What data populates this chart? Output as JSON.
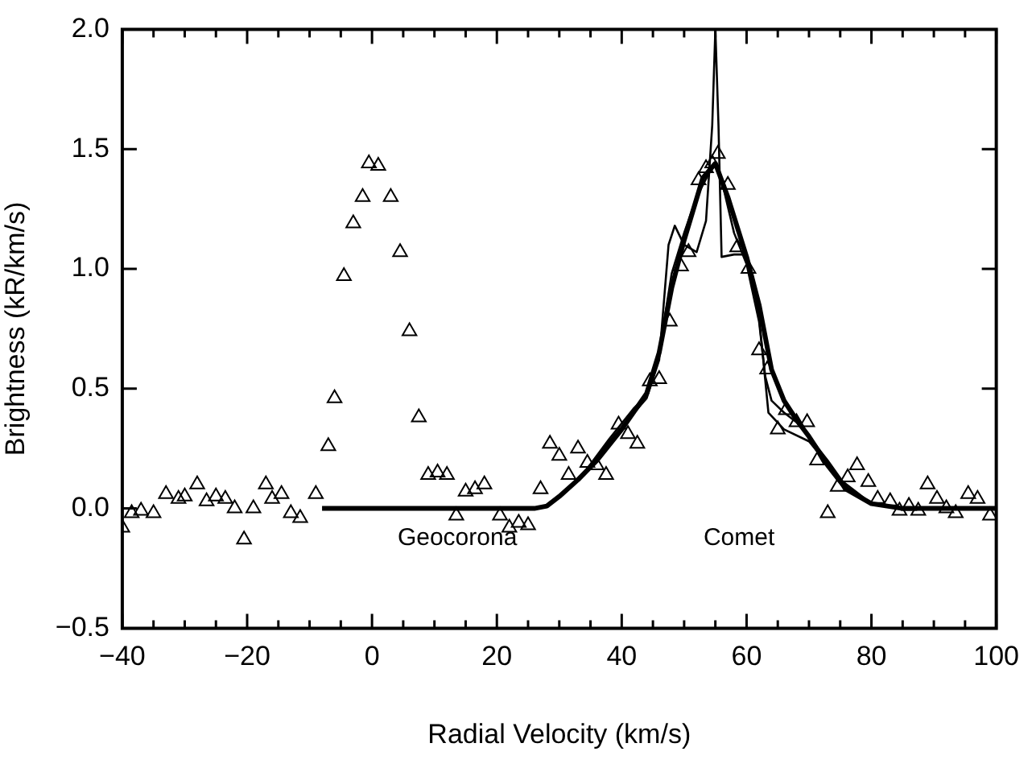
{
  "chart_data": {
    "type": "scatter",
    "xlabel": "Radial Velocity (km/s)",
    "ylabel": "Brightness (kR/km/s)",
    "xlim": [
      -40,
      100
    ],
    "ylim": [
      -0.5,
      2.0
    ],
    "xticks": [
      {
        "value": -40,
        "label": "−40"
      },
      {
        "value": -35,
        "label": null
      },
      {
        "value": -30,
        "label": null
      },
      {
        "value": -25,
        "label": null
      },
      {
        "value": -20,
        "label": "−20"
      },
      {
        "value": -15,
        "label": null
      },
      {
        "value": -10,
        "label": null
      },
      {
        "value": -5,
        "label": null
      },
      {
        "value": 0,
        "label": "0"
      },
      {
        "value": 5,
        "label": null
      },
      {
        "value": 10,
        "label": null
      },
      {
        "value": 15,
        "label": null
      },
      20,
      {
        "value": 25,
        "label": null
      },
      {
        "value": 30,
        "label": null
      },
      {
        "value": 35,
        "label": null
      },
      40,
      {
        "value": 45,
        "label": null
      },
      {
        "value": 50,
        "label": null
      },
      {
        "value": 55,
        "label": null
      },
      60,
      {
        "value": 65,
        "label": null
      },
      {
        "value": 70,
        "label": null
      },
      {
        "value": 75,
        "label": null
      },
      80,
      {
        "value": 85,
        "label": null
      },
      {
        "value": 90,
        "label": null
      },
      {
        "value": 95,
        "label": null
      },
      100
    ],
    "yticks": [
      {
        "value": -0.5,
        "label": "−0.5"
      },
      {
        "value": 0,
        "label": "0.0"
      },
      0.5,
      {
        "value": 1,
        "label": "1.0"
      },
      1.5,
      {
        "value": 2,
        "label": "2.0"
      }
    ],
    "grid": false,
    "legend": false,
    "series": [
      {
        "marker": "triangle",
        "color": "#000000",
        "x": [
          -40,
          -38.5,
          -37,
          -35,
          -33,
          -31,
          -30,
          -28,
          -26.5,
          -25,
          -23.5,
          -22,
          -20.5,
          -19,
          -17,
          -16,
          -14.5,
          -13,
          -11.5,
          -9,
          -7,
          -6,
          -4.5,
          -3,
          -1.5,
          -0.5,
          1,
          3,
          4.5,
          6,
          7.5,
          9,
          10.5,
          12,
          13.5,
          15,
          16.5,
          18,
          20.5,
          22,
          23.5,
          25,
          27,
          28.5,
          30,
          31.5,
          33,
          34.5,
          36,
          37.5,
          39.5,
          41,
          42.5,
          44.5,
          46,
          47.7,
          49.5,
          50.7,
          52.3,
          53.5,
          54.5,
          55.4,
          57,
          58.5,
          60.3,
          62,
          63.3,
          65,
          66.3,
          68,
          69.7,
          71.3,
          73,
          74.6,
          76.2,
          77.7,
          79.5,
          81,
          83,
          84.5,
          86,
          87.5,
          89,
          90.5,
          92,
          93.5,
          95.5,
          97,
          99
        ],
        "values": [
          -0.08,
          -0.02,
          -0.01,
          -0.02,
          0.06,
          0.04,
          0.05,
          0.1,
          0.03,
          0.05,
          0.04,
          0,
          -0.13,
          0,
          0.1,
          0.04,
          0.06,
          -0.02,
          -0.04,
          0.06,
          0.26,
          0.46,
          0.97,
          1.19,
          1.3,
          1.44,
          1.43,
          1.3,
          1.07,
          0.74,
          0.38,
          0.14,
          0.15,
          0.14,
          -0.03,
          0.07,
          0.08,
          0.1,
          -0.03,
          -0.08,
          -0.06,
          -0.07,
          0.08,
          0.27,
          0.22,
          0.14,
          0.25,
          0.19,
          0.18,
          0.14,
          0.35,
          0.31,
          0.27,
          0.53,
          0.54,
          0.78,
          1.01,
          1.07,
          1.37,
          1.42,
          1.44,
          1.48,
          1.35,
          1.09,
          1,
          0.66,
          0.58,
          0.33,
          0.41,
          0.36,
          0.36,
          0.2,
          -0.02,
          0.09,
          0.13,
          0.18,
          0.11,
          0.04,
          0.03,
          -0.01,
          0.01,
          -0.01,
          0.1,
          0.04,
          0,
          -0.02,
          0.06,
          0.04,
          -0.03
        ]
      },
      {
        "type": "line",
        "marker": "none",
        "line_style": "solid",
        "color": "#000000",
        "x": [
          30,
          34,
          38,
          42,
          44,
          46,
          47.5,
          48.5,
          50,
          52,
          53.5,
          54.5,
          55,
          55.5,
          56,
          58,
          60,
          61,
          62,
          63.5,
          66,
          70,
          75,
          80,
          85,
          100
        ],
        "values": [
          0.05,
          0.15,
          0.28,
          0.4,
          0.46,
          0.62,
          1.1,
          1.18,
          1.1,
          1.07,
          1.2,
          1.6,
          2.0,
          1.6,
          1.05,
          1.06,
          1.06,
          0.95,
          0.8,
          0.4,
          0.33,
          0.28,
          0.12,
          0.02,
          0,
          0
        ]
      },
      {
        "type": "line",
        "marker": "none",
        "line_style": "solid",
        "color": "#000000",
        "x": [
          30,
          34,
          38,
          42,
          44,
          46,
          48,
          50,
          52,
          54,
          55,
          56,
          58,
          60,
          62,
          63,
          64,
          66,
          68,
          70,
          73,
          76,
          80,
          85,
          100
        ],
        "values": [
          0.05,
          0.15,
          0.29,
          0.42,
          0.47,
          0.65,
          0.98,
          1.15,
          1.3,
          1.4,
          1.44,
          1.37,
          1.15,
          1.02,
          0.78,
          0.55,
          0.45,
          0.4,
          0.36,
          0.3,
          0.2,
          0.09,
          0.02,
          0,
          0
        ]
      },
      {
        "type": "line",
        "marker": "none",
        "line_style": "solid",
        "color": "#000000",
        "x": [
          -8,
          26,
          28,
          30,
          33,
          36,
          40,
          44,
          46,
          48,
          50,
          53,
          55,
          57,
          60,
          62,
          64,
          66,
          68,
          70,
          73,
          76,
          80,
          85,
          100
        ],
        "values": [
          0,
          0,
          0.01,
          0.05,
          0.12,
          0.2,
          0.33,
          0.48,
          0.65,
          0.92,
          1.12,
          1.38,
          1.44,
          1.3,
          1.05,
          0.85,
          0.58,
          0.45,
          0.37,
          0.3,
          0.18,
          0.08,
          0.02,
          0,
          0
        ]
      }
    ],
    "annotations": [
      "Geocorona",
      "Comet"
    ]
  }
}
